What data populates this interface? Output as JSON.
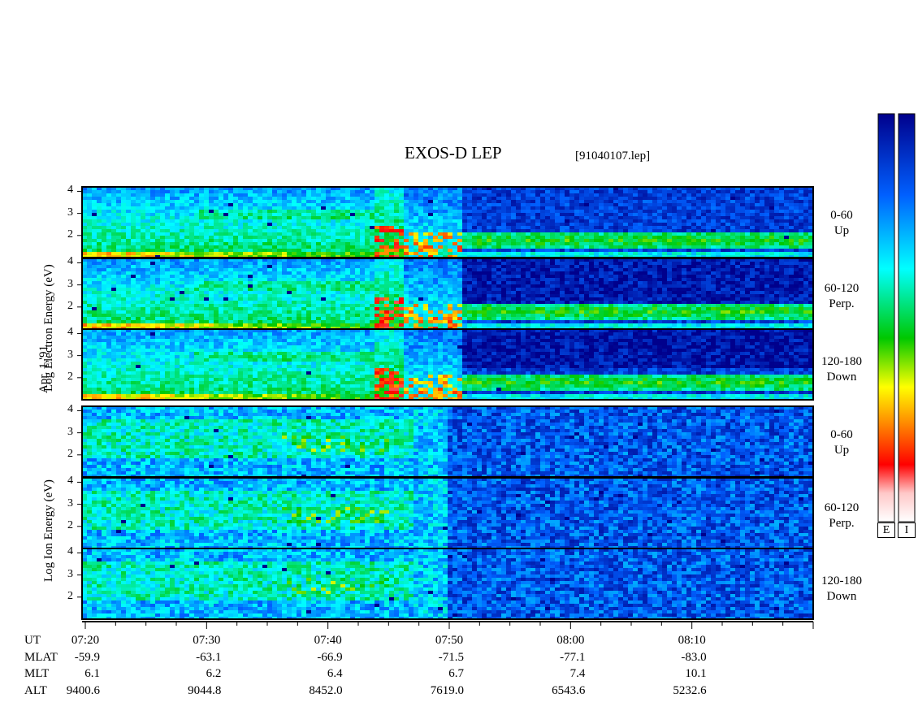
{
  "title": "EXOS-D LEP",
  "file": "[91040107.lep]",
  "date_label": "Apr. 1,'91",
  "electron_label": "Log  Electron  Energy  (eV)",
  "ion_label": "Log   Ion  Energy  (eV)",
  "electron_panels": [
    {
      "line1": "0-60",
      "line2": "Up"
    },
    {
      "line1": "60-120",
      "line2": "Perp."
    },
    {
      "line1": "120-180",
      "line2": "Down"
    }
  ],
  "ion_panels": [
    {
      "line1": "0-60",
      "line2": "Up"
    },
    {
      "line1": "60-120",
      "line2": "Perp."
    },
    {
      "line1": "120-180",
      "line2": "Down"
    }
  ],
  "colorbars": {
    "electron": "E",
    "ion": "I",
    "stops": [
      "#ffffff",
      "#ff0000",
      "#ff8800",
      "#ffff00",
      "#00cc00",
      "#00ffff",
      "#0066ff",
      "#000099"
    ]
  },
  "orbit_table": {
    "row_labels": [
      "UT",
      "MLAT",
      "MLT",
      "ALT"
    ],
    "ut": [
      "07:20",
      "07:30",
      "07:40",
      "07:50",
      "08:00",
      "08:10"
    ],
    "mlat": [
      "-59.9",
      "-63.1",
      "-66.9",
      "-71.5",
      "-77.1",
      "-83.0"
    ],
    "mlt": [
      "6.1",
      "6.2",
      "6.4",
      "6.7",
      "7.4",
      "10.1"
    ],
    "alt": [
      "9400.6",
      "9044.8",
      "8452.0",
      "7619.0",
      "6543.6",
      "5232.6"
    ]
  },
  "chart_data": {
    "type": "heatmap",
    "x_unit": "UT",
    "x_range": [
      "07:20",
      "08:20"
    ],
    "y_ticks": [
      "2",
      "3",
      "4"
    ],
    "ylim": [
      1,
      4.2
    ],
    "ylabel_electron": "Log  Electron  Energy  (eV)",
    "ylabel_ion": "Log   Ion  Energy  (eV)",
    "panels": [
      "Electron 0-60 Up",
      "Electron 60-120 Perp.",
      "Electron 120-180 Down",
      "Ion 0-60 Up",
      "Ion 60-120 Perp.",
      "Ion 120-180 Down"
    ]
  }
}
